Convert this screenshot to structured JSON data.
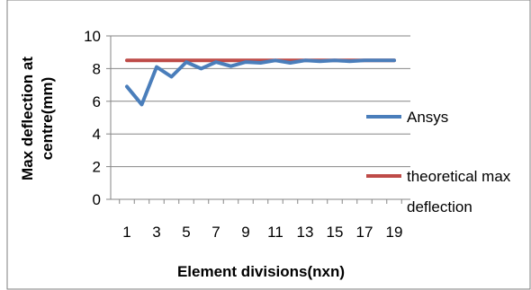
{
  "chart_data": {
    "type": "line",
    "title": "",
    "xlabel": "Element divisions(nxn)",
    "ylabel_lines": [
      "Max deflection at",
      "centre(mm)"
    ],
    "x": [
      1,
      2,
      3,
      4,
      5,
      6,
      7,
      8,
      9,
      10,
      11,
      12,
      13,
      14,
      15,
      16,
      17,
      18,
      19
    ],
    "x_tick_labels": [
      "1",
      "3",
      "5",
      "7",
      "9",
      "11",
      "13",
      "15",
      "17",
      "19"
    ],
    "y_tick_labels": [
      "0",
      "2",
      "4",
      "6",
      "8",
      "10"
    ],
    "ylim": [
      0,
      10
    ],
    "grid": "horizontal",
    "legend_position": "right",
    "series": [
      {
        "name": "Ansys",
        "color": "#4a7ebb",
        "values": [
          6.9,
          5.8,
          8.1,
          7.5,
          8.4,
          8.0,
          8.4,
          8.15,
          8.4,
          8.35,
          8.5,
          8.35,
          8.5,
          8.45,
          8.5,
          8.45,
          8.5,
          8.5,
          8.5
        ]
      },
      {
        "name_lines": [
          "theoretical max",
          "deflection"
        ],
        "color": "#be4b48",
        "values": [
          8.5,
          8.5,
          8.5,
          8.5,
          8.5,
          8.5,
          8.5,
          8.5,
          8.5,
          8.5,
          8.5,
          8.5,
          8.5,
          8.5,
          8.5,
          8.5,
          8.5,
          8.5,
          8.5
        ]
      }
    ]
  }
}
